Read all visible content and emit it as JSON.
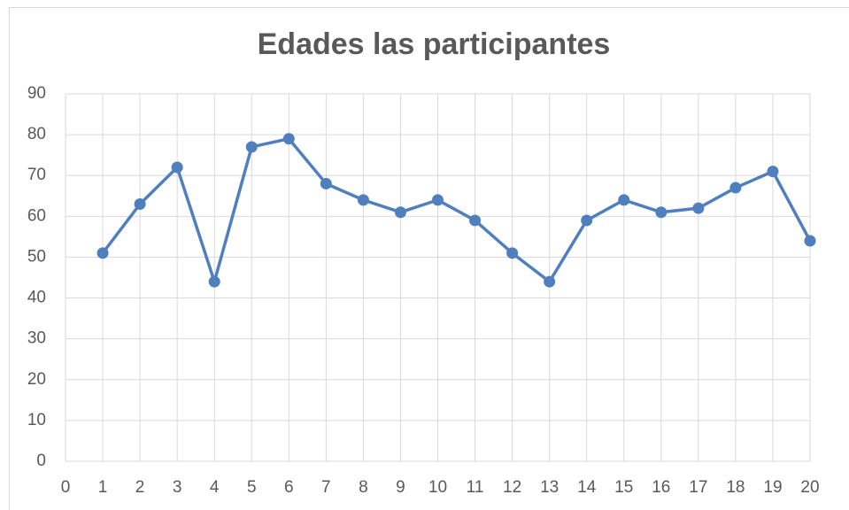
{
  "chart_data": {
    "type": "line",
    "title": "Edades  las participantes",
    "x": [
      1,
      2,
      3,
      4,
      5,
      6,
      7,
      8,
      9,
      10,
      11,
      12,
      13,
      14,
      15,
      16,
      17,
      18,
      19,
      20
    ],
    "series": [
      {
        "color": "#4f7fbd",
        "values": [
          51,
          63,
          72,
          44,
          77,
          79,
          68,
          64,
          61,
          64,
          59,
          51,
          44,
          59,
          64,
          61,
          62,
          67,
          71,
          54
        ]
      }
    ],
    "xlim": [
      0,
      20
    ],
    "xticks": [
      0,
      1,
      2,
      3,
      4,
      5,
      6,
      7,
      8,
      9,
      10,
      11,
      12,
      13,
      14,
      15,
      16,
      17,
      18,
      19,
      20
    ],
    "ylim": [
      0,
      90
    ],
    "yticks": [
      0,
      10,
      20,
      30,
      40,
      50,
      60,
      70,
      80,
      90
    ],
    "grid": true
  }
}
